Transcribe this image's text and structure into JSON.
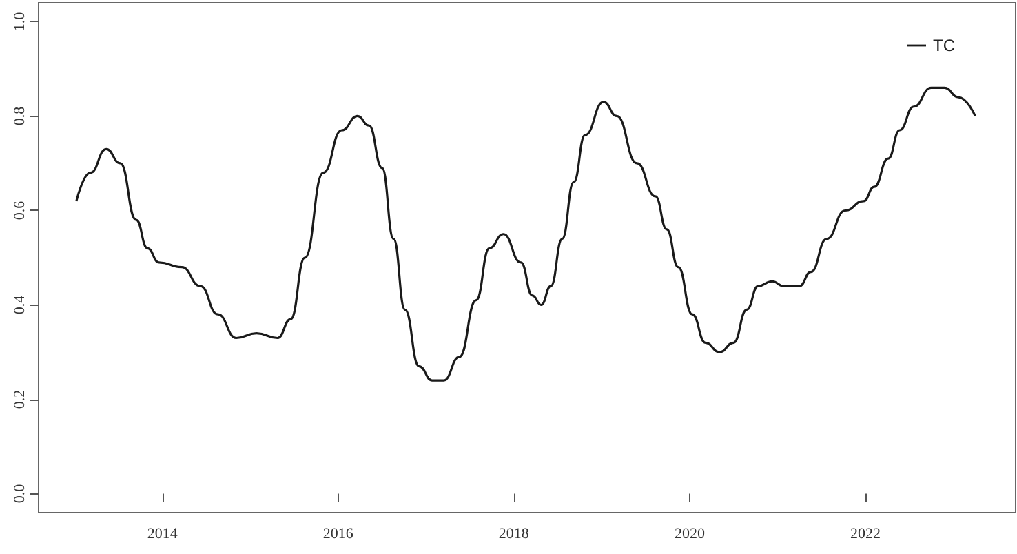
{
  "chart_data": {
    "type": "line",
    "legend": "top right",
    "marker": "none",
    "line_style": "solid",
    "grid": false,
    "xlim": [
      2012.59,
      2023.71
    ],
    "xticks": [
      2014,
      2016,
      2018,
      2020,
      2022
    ],
    "ylim": [
      -0.04,
      1.04
    ],
    "yticks": [
      {
        "value": 0,
        "label": "0.0"
      },
      {
        "value": 0.2,
        "label": "0.2"
      },
      {
        "value": 0.4,
        "label": "0.4"
      },
      {
        "value": 0.6,
        "label": "0.6"
      },
      {
        "value": 0.8,
        "label": "0.8"
      },
      {
        "value": 1,
        "label": "1.0"
      }
    ],
    "series": [
      {
        "name": "TC",
        "color": "#1a1a1a",
        "x": [
          2013.02,
          2013.18,
          2013.36,
          2013.52,
          2013.7,
          2013.83,
          2013.96,
          2014.22,
          2014.43,
          2014.63,
          2014.84,
          2015.07,
          2015.31,
          2015.46,
          2015.62,
          2015.83,
          2016.04,
          2016.22,
          2016.35,
          2016.5,
          2016.63,
          2016.76,
          2016.92,
          2017.07,
          2017.2,
          2017.38,
          2017.57,
          2017.72,
          2017.88,
          2018.08,
          2018.21,
          2018.31,
          2018.42,
          2018.55,
          2018.68,
          2018.81,
          2019.02,
          2019.17,
          2019.4,
          2019.61,
          2019.74,
          2019.87,
          2020.03,
          2020.18,
          2020.34,
          2020.5,
          2020.65,
          2020.78,
          2020.94,
          2021.07,
          2021.25,
          2021.38,
          2021.56,
          2021.77,
          2021.98,
          2022.1,
          2022.26,
          2022.39,
          2022.55,
          2022.75,
          2022.9,
          2023.06,
          2023.25
        ],
        "values": [
          0.62,
          0.68,
          0.73,
          0.7,
          0.58,
          0.52,
          0.49,
          0.48,
          0.44,
          0.38,
          0.33,
          0.34,
          0.33,
          0.37,
          0.5,
          0.68,
          0.77,
          0.8,
          0.78,
          0.69,
          0.54,
          0.39,
          0.27,
          0.24,
          0.24,
          0.29,
          0.41,
          0.52,
          0.55,
          0.49,
          0.42,
          0.4,
          0.44,
          0.54,
          0.66,
          0.76,
          0.83,
          0.8,
          0.7,
          0.63,
          0.56,
          0.48,
          0.38,
          0.32,
          0.3,
          0.32,
          0.39,
          0.44,
          0.45,
          0.44,
          0.44,
          0.47,
          0.54,
          0.6,
          0.62,
          0.65,
          0.71,
          0.77,
          0.82,
          0.86,
          0.86,
          0.84,
          0.8
        ]
      }
    ]
  }
}
